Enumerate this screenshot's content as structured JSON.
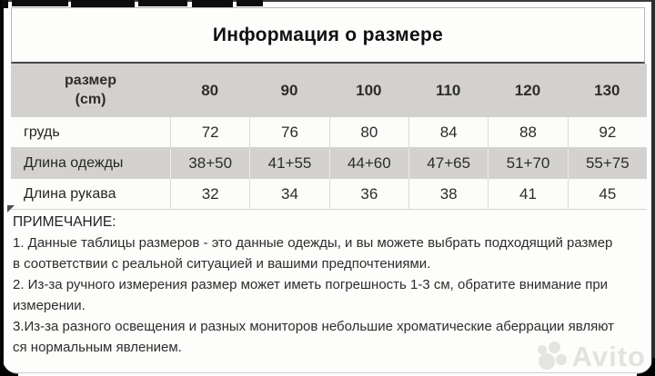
{
  "title": "Информация о размере",
  "size_table": {
    "header": {
      "label_line1": "размер",
      "label_line2": "(cm)",
      "sizes": [
        "80",
        "90",
        "100",
        "110",
        "120",
        "130"
      ]
    },
    "rows": [
      {
        "label": "грудь",
        "values": [
          "72",
          "76",
          "80",
          "84",
          "88",
          "92"
        ]
      },
      {
        "label": "Длина одежды",
        "values": [
          "38+50",
          "41+55",
          "44+60",
          "47+65",
          "51+70",
          "55+75"
        ]
      },
      {
        "label": "Длина рукава",
        "values": [
          "32",
          "34",
          "36",
          "38",
          "41",
          "45"
        ]
      }
    ]
  },
  "notes": {
    "heading": "ПРИМЕЧАНИЕ:",
    "lines": [
      "1. Данные таблицы размеров - это данные одежды, и вы можете выбрать подходящий размер",
      "в соответствии с реальной ситуацией и вашими предпочтениями.",
      "2. Из-за ручного измерения размер может иметь погрешность 1-3 см, обратите внимание при",
      "измерении.",
      "3.Из-за разного освещения и разных мониторов небольшие хроматические аберрации являют",
      "ся нормальным явлением."
    ]
  },
  "watermark": {
    "text": "Avito"
  },
  "colors": {
    "header_bg": "#d2d1cf",
    "row_alt_bg": "#d3d2d0",
    "separator": "#474747",
    "text": "#2c2c2a",
    "watermark": "#e2e2de",
    "frame": "#060606"
  }
}
